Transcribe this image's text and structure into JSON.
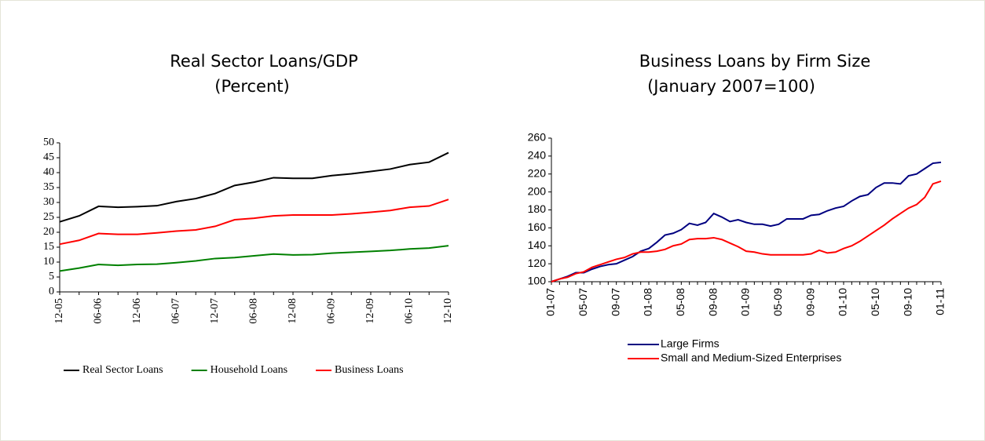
{
  "chart_data": [
    {
      "type": "line",
      "title": "Real Sector Loans/GDP",
      "subtitle": "(Percent)",
      "categories": [
        "12-05",
        null,
        "06-06",
        null,
        "12-06",
        null,
        "06-07",
        null,
        "12-07",
        null,
        "06-08",
        null,
        "12-08",
        null,
        "06-09",
        null,
        "12-09",
        null,
        "06-10",
        null,
        "12-10"
      ],
      "series": [
        {
          "name": "Real Sector Loans",
          "color": "#000000",
          "values": [
            23.5,
            25.5,
            28.7,
            28.4,
            28.6,
            28.9,
            30.3,
            31.3,
            33,
            35.7,
            36.8,
            38.3,
            38.1,
            38.1,
            39,
            39.6,
            40.4,
            41.2,
            42.7,
            43.5,
            46.7
          ]
        },
        {
          "name": "Household Loans",
          "color": "#008000",
          "values": [
            7,
            8,
            9.2,
            8.9,
            9.2,
            9.3,
            9.8,
            10.4,
            11.2,
            11.5,
            12.1,
            12.7,
            12.4,
            12.5,
            13,
            13.3,
            13.6,
            13.9,
            14.4,
            14.7,
            15.5
          ]
        },
        {
          "name": "Business Loans",
          "color": "#ff0000",
          "values": [
            16,
            17.3,
            19.6,
            19.3,
            19.3,
            19.8,
            20.4,
            20.8,
            22,
            24.2,
            24.7,
            25.5,
            25.8,
            25.8,
            25.8,
            26.2,
            26.7,
            27.3,
            28.4,
            28.8,
            31
          ]
        }
      ],
      "ylim": [
        0,
        50
      ],
      "yticks": [
        0,
        5,
        10,
        15,
        20,
        25,
        30,
        35,
        40,
        45,
        50
      ],
      "grid": false,
      "legend": "bottom"
    },
    {
      "type": "line",
      "title": "Business Loans by Firm Size",
      "subtitle": "(January 2007=100)",
      "categories": [
        "01-07",
        null,
        null,
        null,
        "05-07",
        null,
        null,
        null,
        "09-07",
        null,
        null,
        null,
        "01-08",
        null,
        null,
        null,
        "05-08",
        null,
        null,
        null,
        "09-08",
        null,
        null,
        null,
        "01-09",
        null,
        null,
        null,
        "05-09",
        null,
        null,
        null,
        "09-09",
        null,
        null,
        null,
        "01-10",
        null,
        null,
        null,
        "05-10",
        null,
        null,
        null,
        "09-10",
        null,
        null,
        null,
        "01-11"
      ],
      "series": [
        {
          "name": "Large Firms",
          "color": "#000080",
          "values": [
            100,
            103,
            106,
            110,
            110,
            114,
            117,
            119,
            120,
            124,
            128,
            134,
            137,
            144,
            152,
            154,
            158,
            165,
            163,
            166,
            176,
            172,
            167,
            169,
            166,
            164,
            164,
            162,
            164,
            170,
            170,
            170,
            174,
            175,
            179,
            182,
            184,
            190,
            195,
            197,
            205,
            210,
            210,
            209,
            218,
            220,
            226,
            232,
            233
          ]
        },
        {
          "name": "Small and Medium-Sized Enterprises",
          "color": "#ff0000",
          "values": [
            100,
            103,
            105,
            109,
            111,
            116,
            119,
            122,
            125,
            127,
            131,
            133,
            133,
            134,
            136,
            140,
            142,
            147,
            148,
            148,
            149,
            147,
            143,
            139,
            134,
            133,
            131,
            130,
            130,
            130,
            130,
            130,
            131,
            135,
            132,
            133,
            137,
            140,
            145,
            151,
            157,
            163,
            170,
            176,
            182,
            186,
            194,
            209,
            212
          ]
        }
      ],
      "ylim": [
        100,
        260
      ],
      "yticks": [
        100,
        120,
        140,
        160,
        180,
        200,
        220,
        240,
        260
      ],
      "grid": false,
      "legend": "bottom"
    }
  ]
}
